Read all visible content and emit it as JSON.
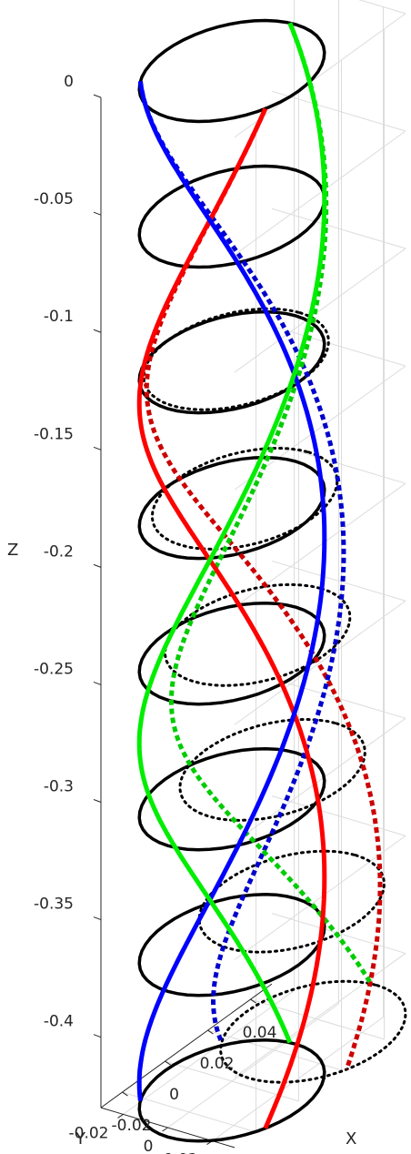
{
  "chart_data": {
    "type": "line",
    "projection": "3d",
    "title": "",
    "xlabel": "X",
    "ylabel": "Y",
    "zlabel": "Z",
    "xlim": [
      -0.03,
      0.05
    ],
    "ylim": [
      -0.03,
      0.03
    ],
    "zlim": [
      -0.43,
      0.0
    ],
    "grid": true,
    "x_ticks": [
      "-0.02",
      "0",
      "0.02",
      "0.04"
    ],
    "y_ticks": [
      "0.02",
      "0",
      "-0.02"
    ],
    "z_ticks": [
      "0",
      "-0.05",
      "-0.1",
      "-0.15",
      "-0.2",
      "-0.25",
      "-0.3",
      "-0.35",
      "-0.4"
    ],
    "z_tick_values": [
      0,
      -0.05,
      -0.1,
      -0.15,
      -0.2,
      -0.25,
      -0.3,
      -0.35,
      -0.4
    ],
    "sections": {
      "radius": 0.03,
      "solid_z": [
        0.0,
        -0.062,
        -0.124,
        -0.186,
        -0.248,
        -0.31,
        -0.372,
        -0.434
      ],
      "solid_x_offset": [
        0.0,
        0.0,
        0.0,
        0.0,
        0.0,
        0.0,
        0.0,
        0.0
      ],
      "dotted_z": [
        -0.062,
        -0.124,
        -0.186,
        -0.248,
        -0.31,
        -0.372,
        -0.434
      ],
      "dotted_x_offset": [
        0.0,
        0.002,
        0.006,
        0.012,
        0.019,
        0.028,
        0.038
      ]
    },
    "series": [
      {
        "color": "#ff0000",
        "style": "solid",
        "phase_deg": 115
      },
      {
        "color": "#0000ff",
        "style": "solid",
        "phase_deg": 235
      },
      {
        "color": "#00ee00",
        "style": "solid",
        "phase_deg": 355
      },
      {
        "color": "#cc0000",
        "style": "dotted",
        "phase_deg": 115
      },
      {
        "color": "#0000cc",
        "style": "dotted",
        "phase_deg": 235
      },
      {
        "color": "#00cc00",
        "style": "dotted",
        "phase_deg": 355
      }
    ],
    "helix_turns": 1.0
  }
}
